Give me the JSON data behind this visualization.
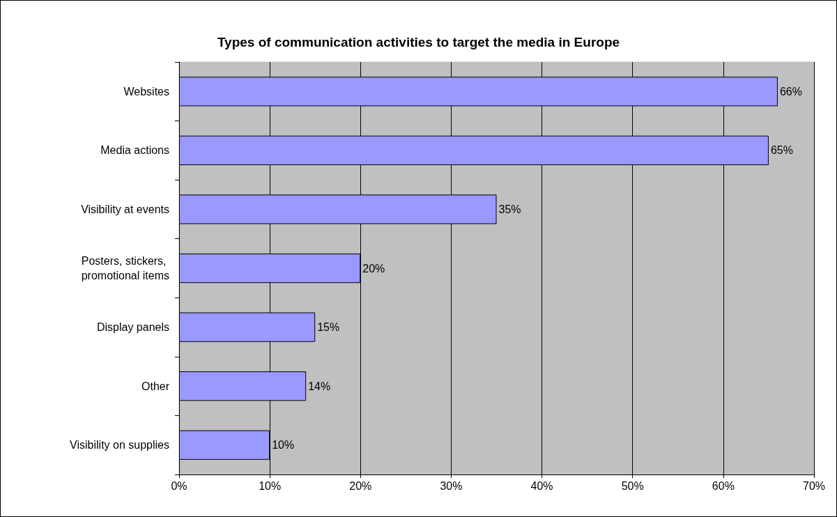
{
  "chart_data": {
    "type": "bar",
    "orientation": "horizontal",
    "title": "Types of communication activities to target the media in Europe",
    "categories": [
      "Websites",
      "Media actions",
      "Visibility at events",
      "Posters, stickers, promotional items",
      "Display panels",
      "Other",
      "Visibility on supplies"
    ],
    "values": [
      66,
      65,
      35,
      20,
      15,
      14,
      10
    ],
    "value_labels": [
      "66%",
      "65%",
      "35%",
      "20%",
      "15%",
      "14%",
      "10%"
    ],
    "color": "#9999ff",
    "xlim": [
      0,
      70
    ],
    "xticks": [
      {
        "value": 0,
        "label": "0%"
      },
      {
        "value": 10,
        "label": "10%"
      },
      {
        "value": 20,
        "label": "20%"
      },
      {
        "value": 30,
        "label": "30%"
      },
      {
        "value": 40,
        "label": "40%"
      },
      {
        "value": 50,
        "label": "50%"
      },
      {
        "value": 60,
        "label": "60%"
      },
      {
        "value": 70,
        "label": "70%"
      }
    ],
    "grid": "x"
  }
}
